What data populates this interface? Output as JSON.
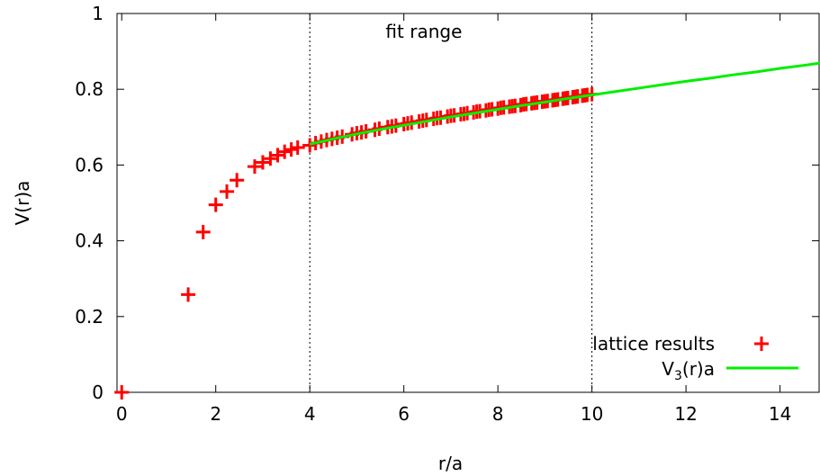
{
  "chart_data": {
    "type": "scatter",
    "xlabel": "r/a",
    "ylabel": "V(r)a",
    "xlim": [
      -0.1,
      14.85
    ],
    "ylim": [
      0,
      1
    ],
    "x_ticks": [
      0,
      2,
      4,
      6,
      8,
      10,
      12,
      14
    ],
    "y_ticks": [
      0,
      0.2,
      0.4,
      0.6,
      0.8,
      1
    ],
    "x_tick_labels": [
      "0",
      "2",
      "4",
      "6",
      "8",
      "10",
      "12",
      "14"
    ],
    "y_tick_labels": [
      "0",
      "0.2",
      "0.4",
      "0.6",
      "0.8",
      "1"
    ],
    "grid": false,
    "legend_position": "bottom-right",
    "annotation": "fit range",
    "fit_range": [
      4,
      10
    ],
    "series": [
      {
        "name": "lattice results",
        "marker": "plus",
        "color": "#ff0000",
        "points": [
          [
            0,
            0
          ],
          [
            1.414,
            0.258
          ],
          [
            1.732,
            0.423
          ],
          [
            2,
            0.495
          ],
          [
            2.236,
            0.53
          ],
          [
            2.449,
            0.56
          ],
          [
            2.828,
            0.596
          ],
          [
            3,
            0.607
          ],
          [
            3.162,
            0.617
          ],
          [
            3.317,
            0.626
          ],
          [
            3.464,
            0.635
          ],
          [
            3.606,
            0.641
          ],
          [
            3.742,
            0.646
          ],
          [
            4,
            0.652
          ],
          [
            4.123,
            0.658
          ],
          [
            4.243,
            0.662
          ],
          [
            4.359,
            0.666
          ],
          [
            4.472,
            0.669
          ],
          [
            4.583,
            0.672
          ],
          [
            4.69,
            0.675
          ],
          [
            4.899,
            0.681
          ],
          [
            5,
            0.684
          ],
          [
            5.099,
            0.686
          ],
          [
            5.196,
            0.689
          ],
          [
            5.385,
            0.693
          ],
          [
            5.477,
            0.696
          ],
          [
            5.657,
            0.7
          ],
          [
            5.745,
            0.702
          ],
          [
            5.831,
            0.704
          ],
          [
            6,
            0.708
          ],
          [
            6.083,
            0.71
          ],
          [
            6.164,
            0.712
          ],
          [
            6.325,
            0.715
          ],
          [
            6.403,
            0.717
          ],
          [
            6.481,
            0.719
          ],
          [
            6.633,
            0.722
          ],
          [
            6.708,
            0.724
          ],
          [
            6.782,
            0.725
          ],
          [
            6.928,
            0.728
          ],
          [
            7,
            0.73
          ],
          [
            7.071,
            0.731
          ],
          [
            7.211,
            0.734
          ],
          [
            7.28,
            0.735
          ],
          [
            7.348,
            0.737
          ],
          [
            7.483,
            0.739
          ],
          [
            7.55,
            0.741
          ],
          [
            7.616,
            0.742
          ],
          [
            7.746,
            0.744
          ],
          [
            7.81,
            0.746
          ],
          [
            7.874,
            0.747
          ],
          [
            8,
            0.749
          ],
          [
            8.062,
            0.751
          ],
          [
            8.124,
            0.752
          ],
          [
            8.246,
            0.754
          ],
          [
            8.307,
            0.755
          ],
          [
            8.367,
            0.756
          ],
          [
            8.485,
            0.758
          ],
          [
            8.544,
            0.76
          ],
          [
            8.602,
            0.761
          ],
          [
            8.718,
            0.763
          ],
          [
            8.775,
            0.764
          ],
          [
            8.832,
            0.765
          ],
          [
            8.944,
            0.767
          ],
          [
            9,
            0.768
          ],
          [
            9.055,
            0.769
          ],
          [
            9.165,
            0.771
          ],
          [
            9.22,
            0.772
          ],
          [
            9.274,
            0.773
          ],
          [
            9.381,
            0.775
          ],
          [
            9.434,
            0.776
          ],
          [
            9.487,
            0.777
          ],
          [
            9.592,
            0.779
          ],
          [
            9.644,
            0.78
          ],
          [
            9.695,
            0.781
          ],
          [
            9.798,
            0.783
          ],
          [
            9.849,
            0.784
          ],
          [
            9.899,
            0.785
          ],
          [
            10,
            0.787
          ]
        ]
      },
      {
        "name": "V",
        "name_subscript": "3",
        "name_suffix": "(r)a",
        "type": "line",
        "color": "#00ee00",
        "x": [
          4,
          4.5,
          5,
          5.5,
          6,
          6.5,
          7,
          7.5,
          8,
          8.5,
          9,
          9.5,
          10,
          10.5,
          11,
          11.5,
          12,
          12.5,
          13,
          13.5,
          14,
          14.5,
          14.85
        ],
        "values": [
          0.655,
          0.669,
          0.682,
          0.694,
          0.705,
          0.716,
          0.727,
          0.737,
          0.747,
          0.757,
          0.766,
          0.776,
          0.785,
          0.794,
          0.803,
          0.812,
          0.821,
          0.829,
          0.838,
          0.846,
          0.855,
          0.863,
          0.869
        ]
      }
    ]
  }
}
